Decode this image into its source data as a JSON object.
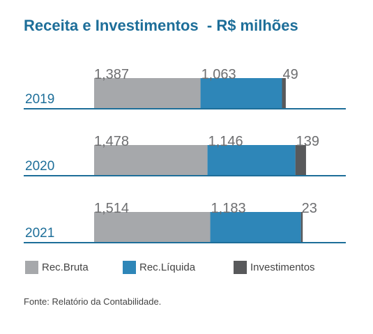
{
  "title": "Receita e Investimentos  - R$ milhões",
  "source": "Fonte: Relatório da Contabilidade.",
  "colors": {
    "rec_bruta": "#a6a8ab",
    "rec_liquida": "#2e86b8",
    "investimentos": "#58595b",
    "axis": "#1d6e99",
    "year_text": "#1d6e99",
    "value_text": "#6d6e70"
  },
  "chart_data": {
    "type": "bar",
    "orientation": "horizontal",
    "stacked": true,
    "title": "Receita e Investimentos  - R$ milhões",
    "categories": [
      "2019",
      "2020",
      "2021"
    ],
    "series": [
      {
        "name": "Rec.Bruta",
        "key": "rec_bruta",
        "values": [
          1387,
          1478,
          1514
        ],
        "labels": [
          "1,387",
          "1,478",
          "1,514"
        ]
      },
      {
        "name": "Rec.Líquida",
        "key": "rec_liquida",
        "values": [
          1063,
          1146,
          1183
        ],
        "labels": [
          "1,063",
          "1,146",
          "1,183"
        ]
      },
      {
        "name": "Investimentos",
        "key": "investimentos",
        "values": [
          49,
          139,
          23
        ],
        "labels": [
          "49",
          "139",
          "23"
        ]
      }
    ],
    "legend_position": "bottom",
    "grid": false
  }
}
